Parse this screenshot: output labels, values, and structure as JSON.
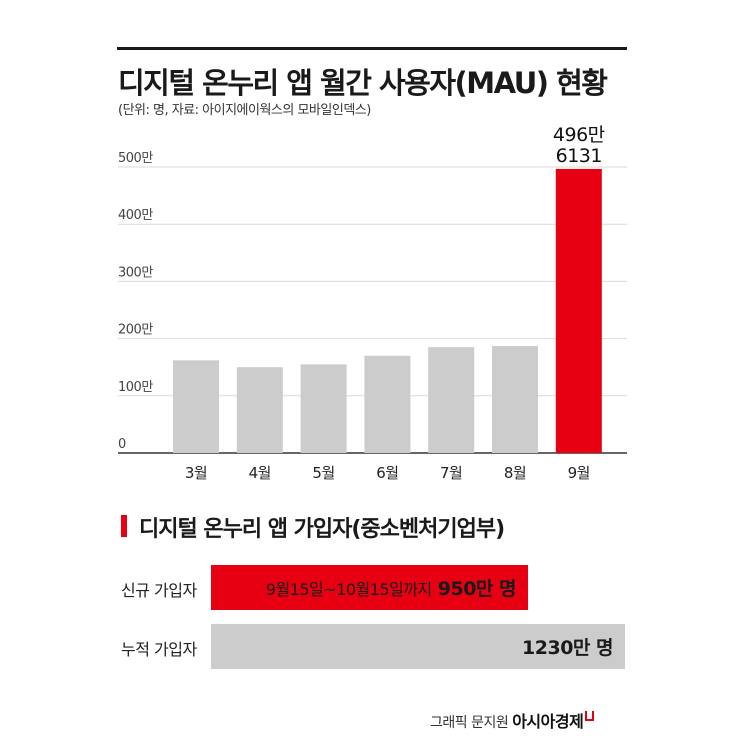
{
  "header": {
    "title": "디지털 온누리 앱 월간 사용자(MAU) 현황",
    "subtitle": "(단위: 명, 자료: 아이지에이웍스의 모바일인덱스)"
  },
  "chart_data": {
    "type": "bar",
    "title": "디지털 온누리 앱 월간 사용자(MAU) 현황",
    "categories": [
      "3월",
      "4월",
      "5월",
      "6월",
      "7월",
      "8월",
      "9월"
    ],
    "values": [
      1620000,
      1500000,
      1550000,
      1700000,
      1850000,
      1870000,
      4966131
    ],
    "yticks": [
      0,
      1000000,
      2000000,
      3000000,
      4000000,
      5000000
    ],
    "ytick_labels": [
      "0",
      "100만",
      "200만",
      "300만",
      "400만",
      "500만"
    ],
    "ylim": [
      0,
      5000000
    ],
    "highlight_index": 6,
    "highlight_label": [
      "496만",
      "6131"
    ],
    "bar_color": "#cccccc",
    "highlight_color": "#e60012",
    "grid": true
  },
  "section": {
    "title": "디지털 온누리 앱 가입자(중소벤처기업부)",
    "rows": [
      {
        "label": "신규 가입자",
        "period": "9월15일~10월15일까지",
        "value": "950만 명",
        "ratio": 0.772
      },
      {
        "label": "누적 가입자",
        "period": "",
        "value": "1230만 명",
        "ratio": 1.0
      }
    ]
  },
  "credit": {
    "text": "그래픽 문지원",
    "brand": "아시아경제"
  }
}
